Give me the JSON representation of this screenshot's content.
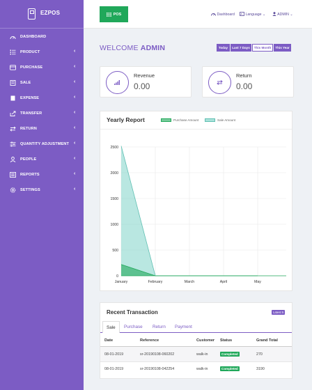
{
  "brand": {
    "name": "EZPOS"
  },
  "sidebar": {
    "items": [
      {
        "label": "DASHBOARD",
        "icon": "gauge-icon",
        "chevron": ""
      },
      {
        "label": "PRODUCT",
        "icon": "list-icon",
        "chevron": "‹"
      },
      {
        "label": "PURCHASE",
        "icon": "card-icon",
        "chevron": "‹"
      },
      {
        "label": "SALE",
        "icon": "cart-icon",
        "chevron": "‹"
      },
      {
        "label": "EXPENSE",
        "icon": "wallet-icon",
        "chevron": "‹"
      },
      {
        "label": "TRANSFER",
        "icon": "share-icon",
        "chevron": "‹"
      },
      {
        "label": "RETURN",
        "icon": "exchange-icon",
        "chevron": "‹"
      },
      {
        "label": "QUANTITY ADJUSTMENT",
        "icon": "sliders-icon",
        "chevron": "‹"
      },
      {
        "label": "PEOPLE",
        "icon": "user-icon",
        "chevron": "‹"
      },
      {
        "label": "REPORTS",
        "icon": "document-icon",
        "chevron": "‹"
      },
      {
        "label": "SETTINGS",
        "icon": "gear-icon",
        "chevron": "‹"
      }
    ]
  },
  "topbar": {
    "pos_label": "POS",
    "dashboard_link": "Dashboard",
    "language_link": "Language",
    "user_link": "ADMIN",
    "caret": "⌄"
  },
  "welcome": {
    "prefix": "WELCOME ",
    "name": "ADMIN"
  },
  "date_range": {
    "buttons": [
      "Today",
      "Last 7 Days",
      "This Month",
      "This Year"
    ],
    "active": "This Month"
  },
  "stats": {
    "revenue": {
      "title": "Revenue",
      "value": "0.00"
    },
    "return": {
      "title": "Return",
      "value": "0.00"
    }
  },
  "chart_data": {
    "type": "area",
    "title": "Yearly Report",
    "categories": [
      "January",
      "February",
      "March",
      "April",
      "May"
    ],
    "ylim": [
      0,
      2500
    ],
    "yticks": [
      0,
      500,
      1000,
      1500,
      2000,
      2500
    ],
    "grid": true,
    "legend_position": "top",
    "series": [
      {
        "name": "Purchase Amount",
        "values": [
          220,
          0,
          0,
          0,
          0
        ],
        "color": "#20a85a"
      },
      {
        "name": "Sale Amount",
        "values": [
          2520,
          0,
          0,
          0,
          0
        ],
        "color": "#7fd3c8"
      }
    ]
  },
  "recent": {
    "title": "Recent Transaction",
    "badge": "Latest 5",
    "tabs": [
      "Sale",
      "Purchase",
      "Return",
      "Payment"
    ],
    "active_tab": "Sale",
    "columns": [
      "Date",
      "Reference",
      "Customer",
      "Status",
      "Grand Total"
    ],
    "rows": [
      {
        "date": "08-01-2019",
        "reference": "sr-20190108-060202",
        "customer": "walk-in",
        "status": "Completed",
        "total": "270"
      },
      {
        "date": "08-01-2019",
        "reference": "sr-20190108-042254",
        "customer": "walk-in",
        "status": "Completed",
        "total": "3190"
      }
    ]
  },
  "colors": {
    "primary": "#7c5cc4",
    "success": "#20a85a",
    "sale_fill": "#7fd3c8"
  }
}
